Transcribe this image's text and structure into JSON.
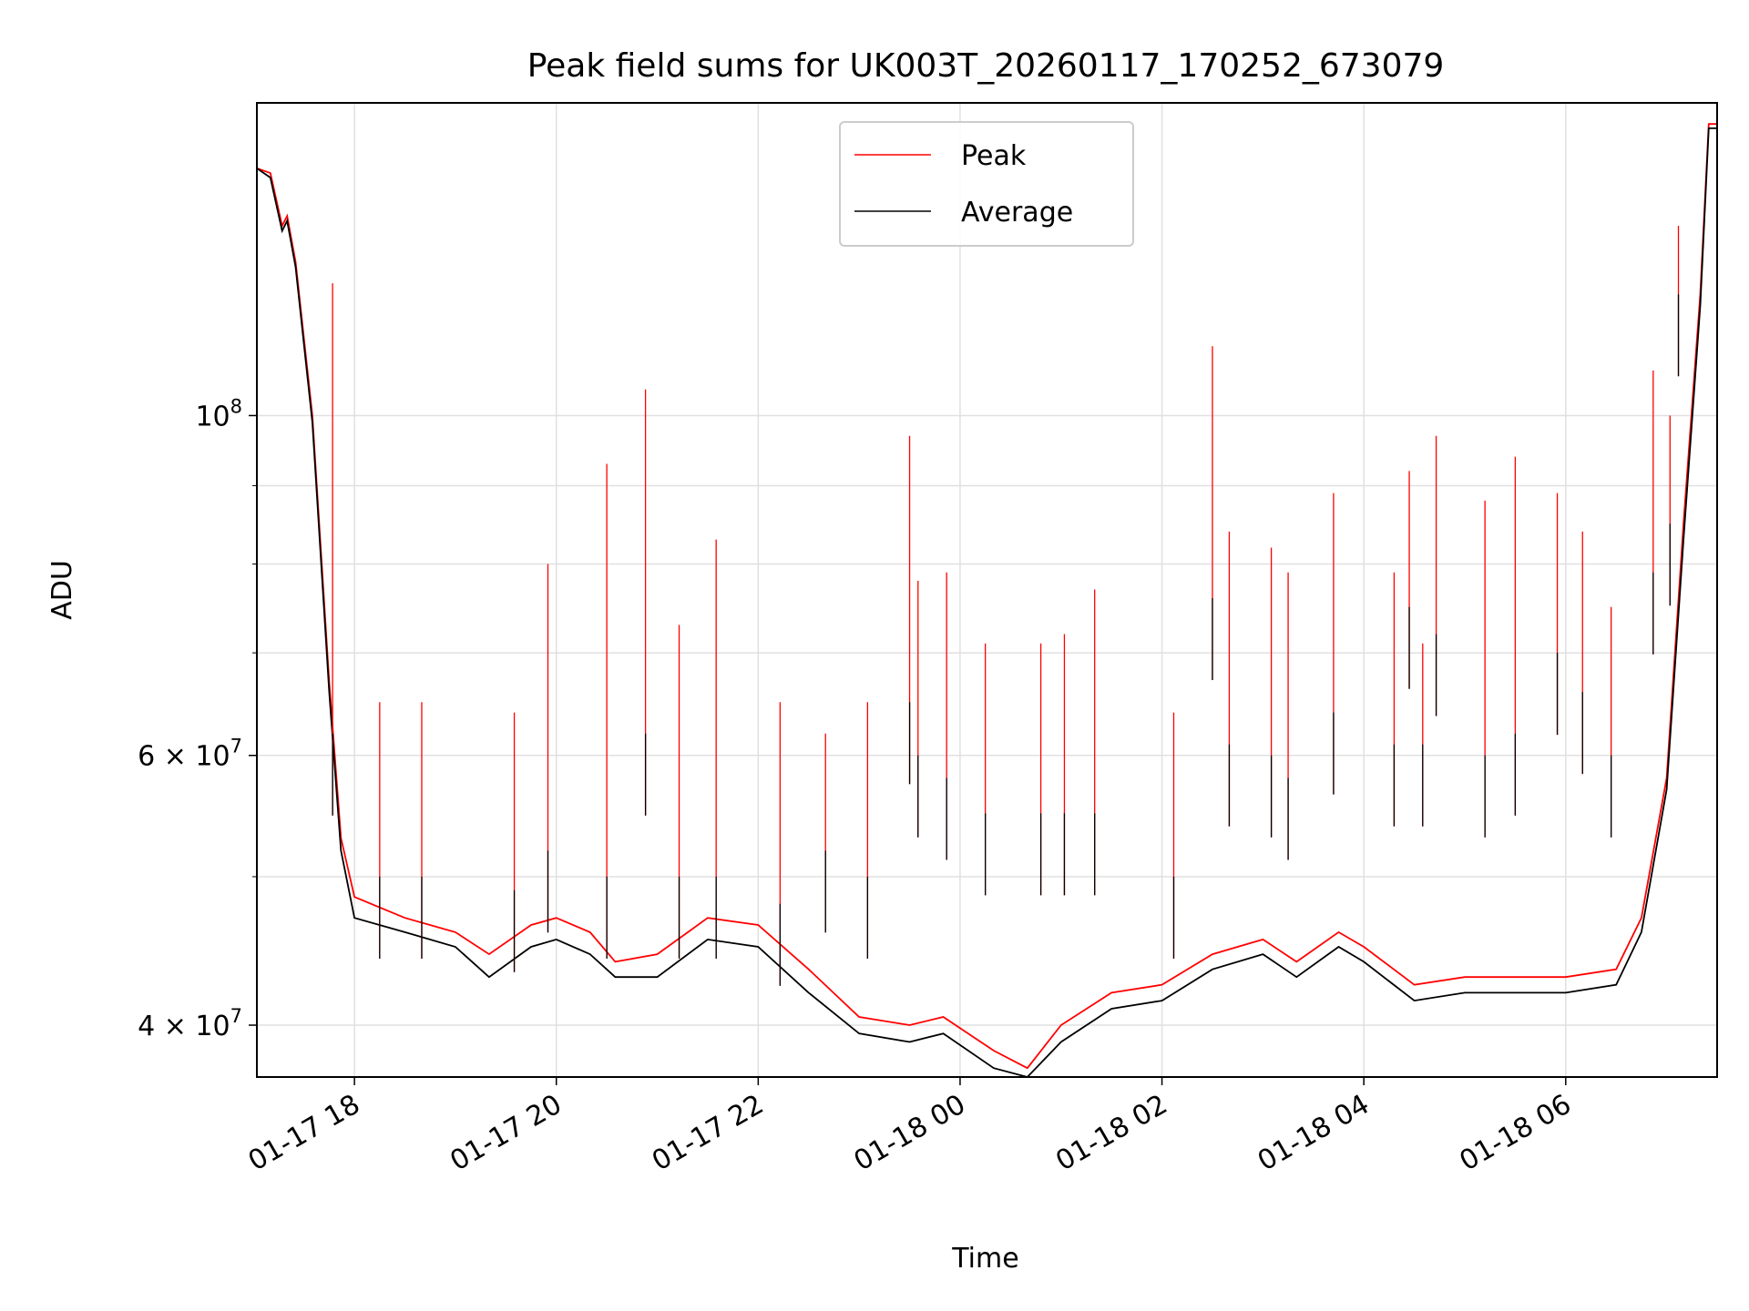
{
  "chart_data": {
    "type": "line",
    "title": "Peak field sums for UK003T_20260117_170252_673079",
    "xlabel": "Time",
    "ylabel": "ADU",
    "yscale": "log",
    "grid": true,
    "legend_position": "top-center",
    "x_range": [
      "2026-01-17 17:02",
      "2026-01-18 07:30"
    ],
    "ylim": [
      37000000,
      160000000
    ],
    "x_ticks": [
      {
        "t": "2026-01-17 18:00",
        "label": "01-17 18"
      },
      {
        "t": "2026-01-17 20:00",
        "label": "01-17 20"
      },
      {
        "t": "2026-01-17 22:00",
        "label": "01-17 22"
      },
      {
        "t": "2026-01-18 00:00",
        "label": "01-18 00"
      },
      {
        "t": "2026-01-18 02:00",
        "label": "01-18 02"
      },
      {
        "t": "2026-01-18 04:00",
        "label": "01-18 04"
      },
      {
        "t": "2026-01-18 06:00",
        "label": "01-18 06"
      }
    ],
    "y_ticks": [
      {
        "v": 40000000,
        "base": "4",
        "exp": "7"
      },
      {
        "v": 60000000,
        "base": "6",
        "exp": "7"
      },
      {
        "v": 100000000,
        "base": "",
        "exp": "8"
      }
    ],
    "y_minor_grid": [
      50000000,
      70000000,
      80000000,
      90000000
    ],
    "series": [
      {
        "name": "Peak",
        "color": "#ff0000",
        "x": [
          "2026-01-17 17:02",
          "2026-01-17 17:10",
          "2026-01-17 17:17",
          "2026-01-17 17:20",
          "2026-01-17 17:25",
          "2026-01-17 17:35",
          "2026-01-17 17:45",
          "2026-01-17 17:52",
          "2026-01-17 18:00",
          "2026-01-17 18:30",
          "2026-01-17 19:00",
          "2026-01-17 19:20",
          "2026-01-17 19:45",
          "2026-01-17 20:00",
          "2026-01-17 20:20",
          "2026-01-17 20:35",
          "2026-01-17 21:00",
          "2026-01-17 21:30",
          "2026-01-17 22:00",
          "2026-01-17 22:30",
          "2026-01-17 23:00",
          "2026-01-17 23:30",
          "2026-01-17 23:50",
          "2026-01-18 00:20",
          "2026-01-18 00:40",
          "2026-01-18 01:00",
          "2026-01-18 01:30",
          "2026-01-18 02:00",
          "2026-01-18 02:30",
          "2026-01-18 03:00",
          "2026-01-18 03:20",
          "2026-01-18 03:45",
          "2026-01-18 04:00",
          "2026-01-18 04:30",
          "2026-01-18 05:00",
          "2026-01-18 05:30",
          "2026-01-18 06:00",
          "2026-01-18 06:30",
          "2026-01-18 06:45",
          "2026-01-18 07:00",
          "2026-01-18 07:10",
          "2026-01-18 07:20",
          "2026-01-18 07:25",
          "2026-01-18 07:30"
        ],
        "values": [
          145000000,
          144000000,
          133000000,
          135000000,
          126000000,
          100000000,
          67000000,
          53000000,
          48500000,
          47000000,
          46000000,
          44500000,
          46500000,
          47000000,
          46000000,
          44000000,
          44500000,
          47000000,
          46500000,
          43500000,
          40500000,
          40000000,
          40500000,
          38500000,
          37500000,
          40000000,
          42000000,
          42500000,
          44500000,
          45500000,
          44000000,
          46000000,
          45000000,
          42500000,
          43000000,
          43000000,
          43000000,
          43500000,
          47000000,
          58000000,
          85000000,
          120000000,
          155000000,
          155000000
        ]
      },
      {
        "name": "Average",
        "color": "#000000",
        "x": [
          "2026-01-17 17:02",
          "2026-01-17 17:10",
          "2026-01-17 17:17",
          "2026-01-17 17:20",
          "2026-01-17 17:25",
          "2026-01-17 17:35",
          "2026-01-17 17:45",
          "2026-01-17 17:52",
          "2026-01-17 18:00",
          "2026-01-17 18:30",
          "2026-01-17 19:00",
          "2026-01-17 19:20",
          "2026-01-17 19:45",
          "2026-01-17 20:00",
          "2026-01-17 20:20",
          "2026-01-17 20:35",
          "2026-01-17 21:00",
          "2026-01-17 21:30",
          "2026-01-17 22:00",
          "2026-01-17 22:30",
          "2026-01-17 23:00",
          "2026-01-17 23:30",
          "2026-01-17 23:50",
          "2026-01-18 00:20",
          "2026-01-18 00:40",
          "2026-01-18 01:00",
          "2026-01-18 01:30",
          "2026-01-18 02:00",
          "2026-01-18 02:30",
          "2026-01-18 03:00",
          "2026-01-18 03:20",
          "2026-01-18 03:45",
          "2026-01-18 04:00",
          "2026-01-18 04:30",
          "2026-01-18 05:00",
          "2026-01-18 05:30",
          "2026-01-18 06:00",
          "2026-01-18 06:30",
          "2026-01-18 06:45",
          "2026-01-18 07:00",
          "2026-01-18 07:10",
          "2026-01-18 07:20",
          "2026-01-18 07:25",
          "2026-01-18 07:30"
        ],
        "values": [
          145000000,
          143000000,
          132000000,
          134000000,
          125000000,
          99000000,
          66000000,
          52000000,
          47000000,
          46000000,
          45000000,
          43000000,
          45000000,
          45500000,
          44500000,
          43000000,
          43000000,
          45500000,
          45000000,
          42000000,
          39500000,
          39000000,
          39500000,
          37500000,
          37000000,
          39000000,
          41000000,
          41500000,
          43500000,
          44500000,
          43000000,
          45000000,
          44000000,
          41500000,
          42000000,
          42000000,
          42000000,
          42500000,
          46000000,
          57000000,
          83000000,
          118000000,
          154000000,
          154000000
        ]
      }
    ],
    "spikes": [
      {
        "t": "2026-01-17 17:47",
        "peak": 122000000,
        "avg": 62000000
      },
      {
        "t": "2026-01-17 18:15",
        "peak": 65000000,
        "avg": 50000000
      },
      {
        "t": "2026-01-17 18:40",
        "peak": 65000000,
        "avg": 50000000
      },
      {
        "t": "2026-01-17 19:35",
        "peak": 64000000,
        "avg": 49000000
      },
      {
        "t": "2026-01-17 19:55",
        "peak": 80000000,
        "avg": 52000000
      },
      {
        "t": "2026-01-17 20:30",
        "peak": 93000000,
        "avg": 50000000
      },
      {
        "t": "2026-01-17 20:53",
        "peak": 104000000,
        "avg": 62000000
      },
      {
        "t": "2026-01-17 21:13",
        "peak": 73000000,
        "avg": 50000000
      },
      {
        "t": "2026-01-17 21:35",
        "peak": 83000000,
        "avg": 50000000
      },
      {
        "t": "2026-01-17 22:13",
        "peak": 65000000,
        "avg": 48000000
      },
      {
        "t": "2026-01-17 22:40",
        "peak": 62000000,
        "avg": 52000000
      },
      {
        "t": "2026-01-17 23:05",
        "peak": 65000000,
        "avg": 50000000
      },
      {
        "t": "2026-01-17 23:30",
        "peak": 97000000,
        "avg": 65000000
      },
      {
        "t": "2026-01-17 23:35",
        "peak": 78000000,
        "avg": 60000000
      },
      {
        "t": "2026-01-17 23:52",
        "peak": 79000000,
        "avg": 58000000
      },
      {
        "t": "2026-01-18 00:15",
        "peak": 71000000,
        "avg": 55000000
      },
      {
        "t": "2026-01-18 00:48",
        "peak": 71000000,
        "avg": 55000000
      },
      {
        "t": "2026-01-18 01:02",
        "peak": 72000000,
        "avg": 55000000
      },
      {
        "t": "2026-01-18 01:20",
        "peak": 77000000,
        "avg": 55000000
      },
      {
        "t": "2026-01-18 02:07",
        "peak": 64000000,
        "avg": 50000000
      },
      {
        "t": "2026-01-18 02:30",
        "peak": 111000000,
        "avg": 76000000
      },
      {
        "t": "2026-01-18 02:40",
        "peak": 84000000,
        "avg": 61000000
      },
      {
        "t": "2026-01-18 03:05",
        "peak": 82000000,
        "avg": 60000000
      },
      {
        "t": "2026-01-18 03:15",
        "peak": 79000000,
        "avg": 58000000
      },
      {
        "t": "2026-01-18 03:42",
        "peak": 89000000,
        "avg": 64000000
      },
      {
        "t": "2026-01-18 04:18",
        "peak": 79000000,
        "avg": 61000000
      },
      {
        "t": "2026-01-18 04:27",
        "peak": 92000000,
        "avg": 75000000
      },
      {
        "t": "2026-01-18 04:35",
        "peak": 71000000,
        "avg": 61000000
      },
      {
        "t": "2026-01-18 04:43",
        "peak": 97000000,
        "avg": 72000000
      },
      {
        "t": "2026-01-18 05:12",
        "peak": 88000000,
        "avg": 60000000
      },
      {
        "t": "2026-01-18 05:30",
        "peak": 94000000,
        "avg": 62000000
      },
      {
        "t": "2026-01-18 05:55",
        "peak": 89000000,
        "avg": 70000000
      },
      {
        "t": "2026-01-18 06:10",
        "peak": 84000000,
        "avg": 66000000
      },
      {
        "t": "2026-01-18 06:27",
        "peak": 75000000,
        "avg": 60000000
      },
      {
        "t": "2026-01-18 06:52",
        "peak": 107000000,
        "avg": 79000000
      },
      {
        "t": "2026-01-18 07:02",
        "peak": 100000000,
        "avg": 85000000
      },
      {
        "t": "2026-01-18 07:07",
        "peak": 133000000,
        "avg": 120000000
      }
    ]
  }
}
